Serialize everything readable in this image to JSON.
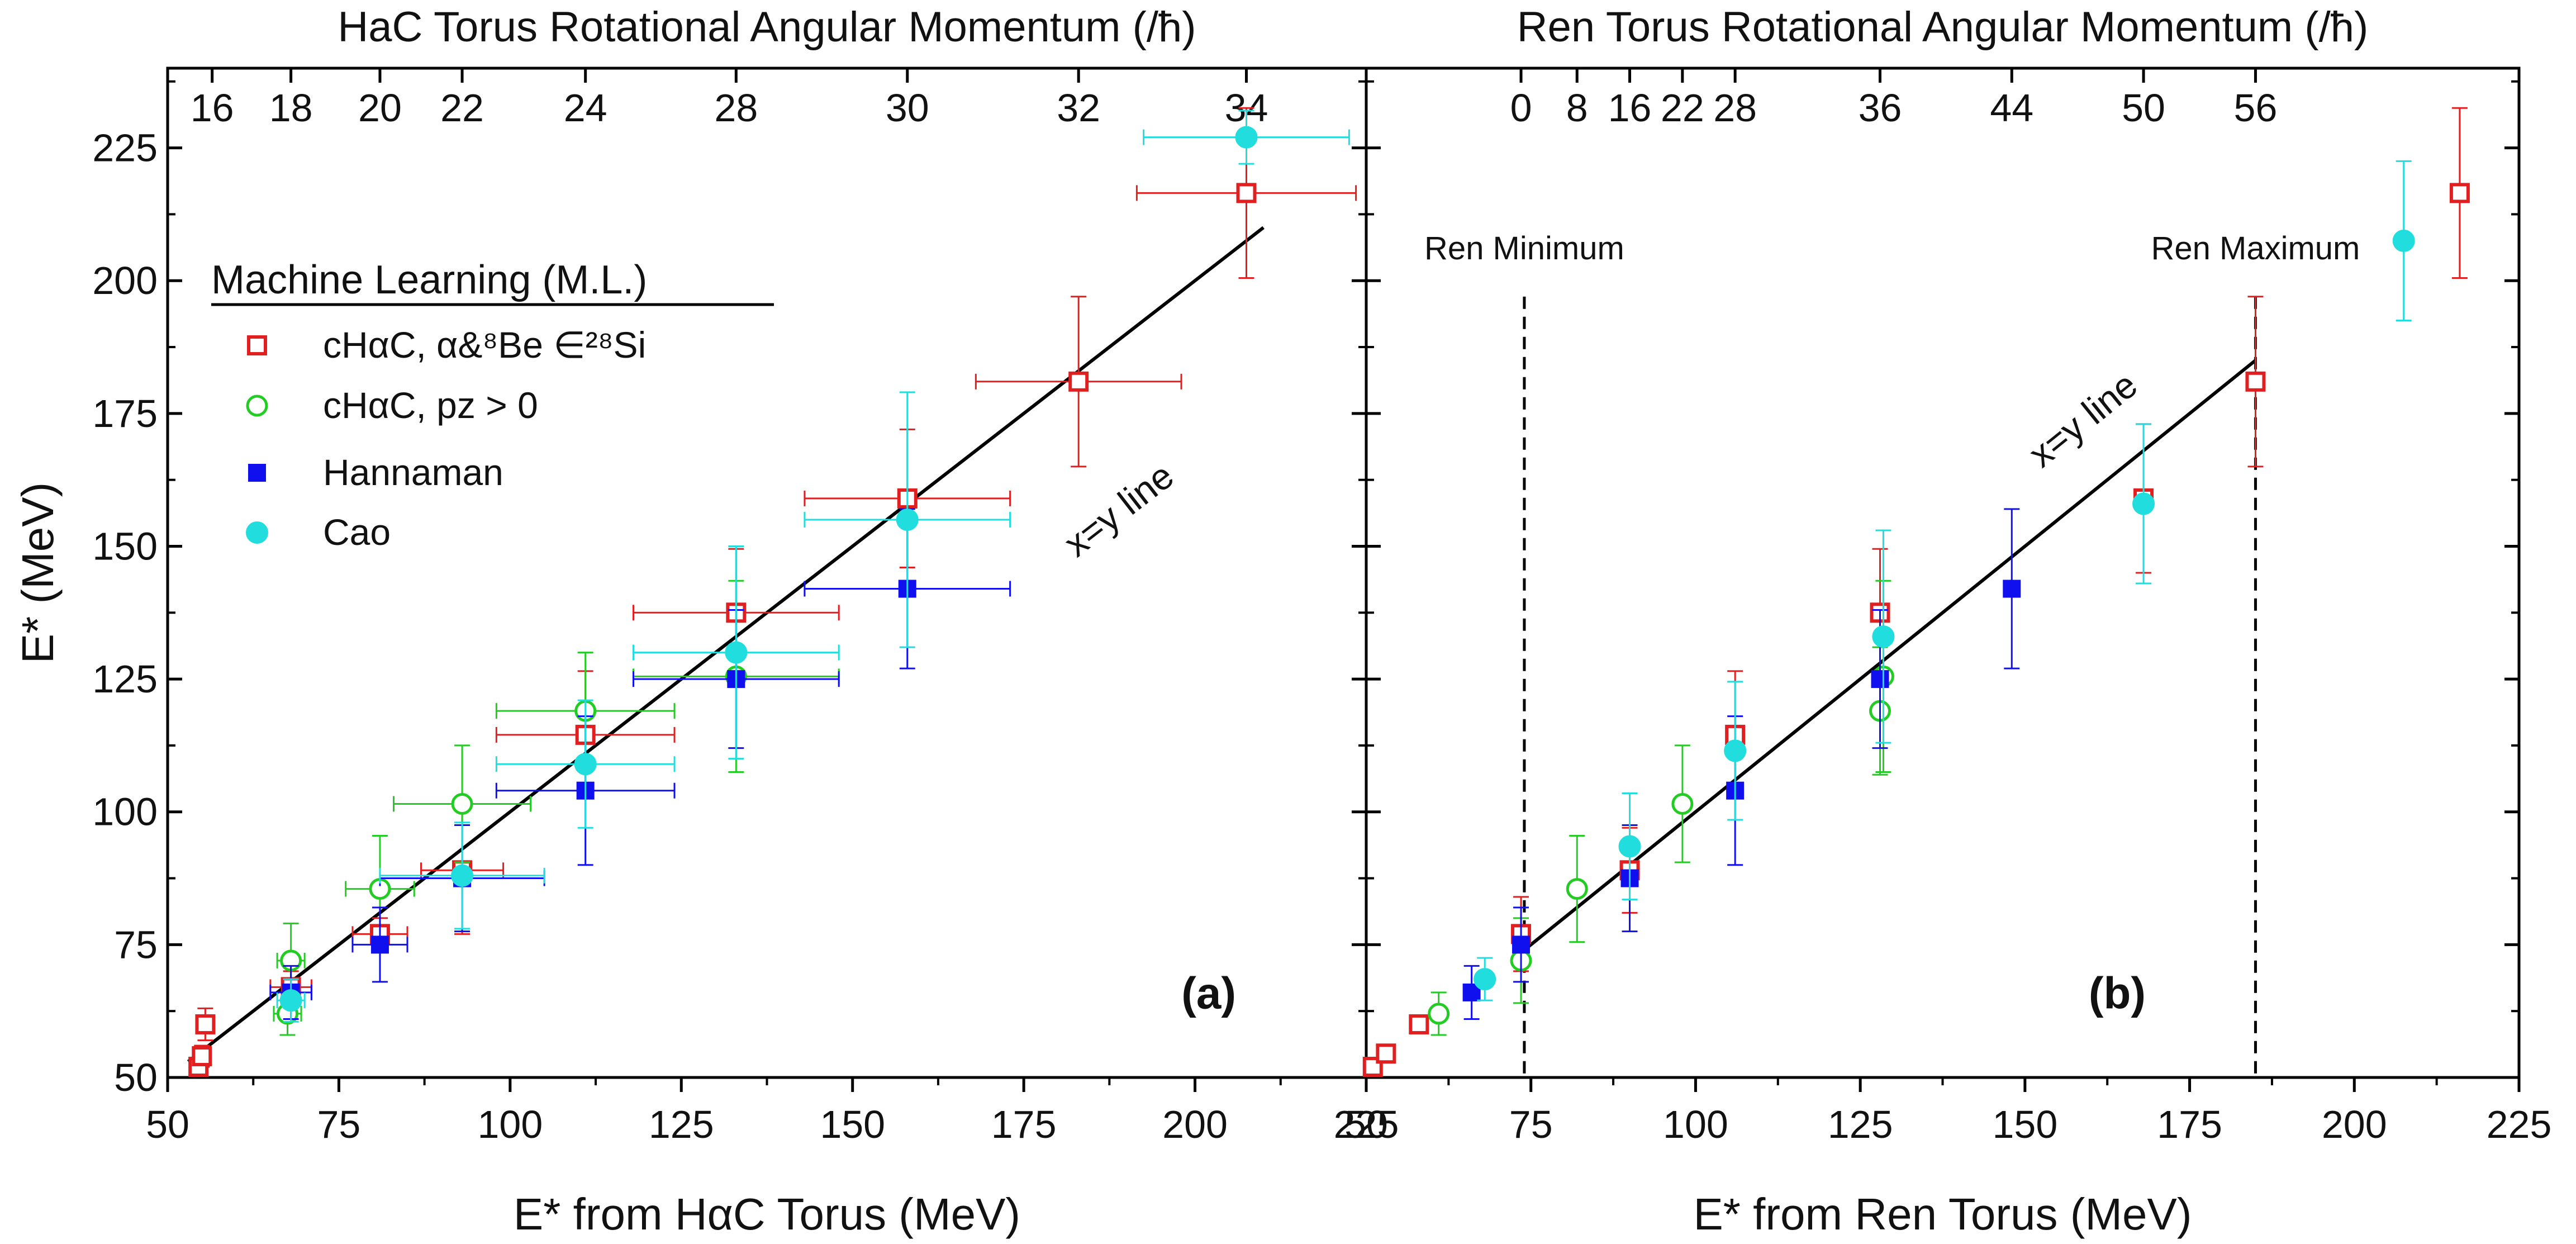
{
  "chart_data": [
    {
      "type": "scatter",
      "panel_label": "(a)",
      "top_axis_title": "HaC Torus Rotational Angular Momentum (/ħ)",
      "top_ticks": [
        {
          "x": 56.5,
          "label": "16"
        },
        {
          "x": 68,
          "label": "18"
        },
        {
          "x": 81,
          "label": "20"
        },
        {
          "x": 93,
          "label": "22"
        },
        {
          "x": 111,
          "label": "24"
        },
        {
          "x": 133,
          "label": "28"
        },
        {
          "x": 158,
          "label": "30"
        },
        {
          "x": 183,
          "label": "32"
        },
        {
          "x": 207.5,
          "label": "34"
        }
      ],
      "xlabel": "E* from HαC Torus (MeV)",
      "ylabel": "E* (MeV)",
      "xlim": [
        50,
        225
      ],
      "ylim": [
        50,
        240
      ],
      "xticks": [
        50,
        75,
        100,
        125,
        150,
        175,
        200,
        225
      ],
      "yticks": [
        50,
        75,
        100,
        125,
        150,
        175,
        200,
        225
      ],
      "line": {
        "x1": 53,
        "x2": 210,
        "label": "x=y line",
        "label_x": 190,
        "label_y": 155
      },
      "legend": {
        "title": "Machine Learning (M.L.)",
        "entries": [
          {
            "label": "cHαC, α&⁸Be ∈²⁸Si",
            "marker": "open-square",
            "color": "#e02020"
          },
          {
            "label": "cHαC, pz > 0",
            "marker": "open-circle",
            "color": "#22cc22"
          },
          {
            "label": "Hannaman",
            "marker": "filled-square",
            "color": "#1010ee"
          },
          {
            "label": "Cao",
            "marker": "filled-circle",
            "color": "#22dddd"
          }
        ]
      },
      "series": [
        {
          "name": "cHαC, α&⁸Be ∈²⁸Si",
          "marker": "open-square",
          "color": "#e02020",
          "points": [
            {
              "x": 54.5,
              "y": 52,
              "xerr": 0,
              "yerr": 0
            },
            {
              "x": 55,
              "y": 54,
              "xerr": 0,
              "yerr": 2
            },
            {
              "x": 55.5,
              "y": 60,
              "xerr": 0,
              "yerr": 3
            },
            {
              "x": 68,
              "y": 67,
              "xerr": 3,
              "yerr": 3
            },
            {
              "x": 81,
              "y": 77,
              "xerr": 4,
              "yerr": 3
            },
            {
              "x": 93,
              "y": 89,
              "xerr": 6,
              "yerr": 12
            },
            {
              "x": 111,
              "y": 114.5,
              "xerr": 13,
              "yerr": 12
            },
            {
              "x": 133,
              "y": 137.5,
              "xerr": 15,
              "yerr": 12
            },
            {
              "x": 158,
              "y": 159,
              "xerr": 15,
              "yerr": 13
            },
            {
              "x": 183,
              "y": 181,
              "xerr": 15,
              "yerr": 16
            },
            {
              "x": 207.5,
              "y": 216.5,
              "xerr": 16,
              "yerr": 16
            }
          ]
        },
        {
          "name": "cHαC, pz > 0",
          "marker": "open-circle",
          "color": "#22cc22",
          "points": [
            {
              "x": 67.5,
              "y": 62,
              "xerr": 2,
              "yerr": 4
            },
            {
              "x": 68,
              "y": 72,
              "xerr": 2,
              "yerr": 7
            },
            {
              "x": 81,
              "y": 85.5,
              "xerr": 5,
              "yerr": 10
            },
            {
              "x": 93,
              "y": 101.5,
              "xerr": 10,
              "yerr": 11
            },
            {
              "x": 111,
              "y": 119,
              "xerr": 13,
              "yerr": 11
            },
            {
              "x": 133,
              "y": 125.5,
              "xerr": 15,
              "yerr": 18
            }
          ]
        },
        {
          "name": "Hannaman",
          "marker": "filled-square",
          "color": "#1010ee",
          "points": [
            {
              "x": 68,
              "y": 66,
              "xerr": 3,
              "yerr": 5
            },
            {
              "x": 81,
              "y": 75,
              "xerr": 4,
              "yerr": 7
            },
            {
              "x": 93,
              "y": 87.5,
              "xerr": 12,
              "yerr": 10
            },
            {
              "x": 111,
              "y": 104,
              "xerr": 13,
              "yerr": 14
            },
            {
              "x": 133,
              "y": 125,
              "xerr": 15,
              "yerr": 13
            },
            {
              "x": 158,
              "y": 142,
              "xerr": 15,
              "yerr": 15
            }
          ]
        },
        {
          "name": "Cao",
          "marker": "filled-circle",
          "color": "#22dddd",
          "points": [
            {
              "x": 68,
              "y": 64.5,
              "xerr": 2,
              "yerr": 4
            },
            {
              "x": 93,
              "y": 88,
              "xerr": 12,
              "yerr": 10
            },
            {
              "x": 111,
              "y": 109,
              "xerr": 13,
              "yerr": 12
            },
            {
              "x": 133,
              "y": 130,
              "xerr": 15,
              "yerr": 20
            },
            {
              "x": 158,
              "y": 155,
              "xerr": 15,
              "yerr": 24
            },
            {
              "x": 207.5,
              "y": 227,
              "xerr": 15,
              "yerr": 5
            }
          ]
        }
      ]
    },
    {
      "type": "scatter",
      "panel_label": "(b)",
      "top_axis_title": "Ren Torus Rotational Angular Momentum (/ħ)",
      "top_ticks": [
        {
          "x": 73.5,
          "label": "0"
        },
        {
          "x": 82,
          "label": "8"
        },
        {
          "x": 90,
          "label": "16"
        },
        {
          "x": 98,
          "label": "22"
        },
        {
          "x": 106,
          "label": "28"
        },
        {
          "x": 128,
          "label": "36"
        },
        {
          "x": 148,
          "label": "44"
        },
        {
          "x": 168,
          "label": "50"
        },
        {
          "x": 185,
          "label": "56"
        }
      ],
      "xlabel": "E* from Ren Torus (MeV)",
      "ylabel": "",
      "xlim": [
        50,
        225
      ],
      "ylim": [
        50,
        240
      ],
      "xticks": [
        50,
        75,
        100,
        125,
        150,
        175,
        200,
        225
      ],
      "yticks": [
        50,
        75,
        100,
        125,
        150,
        175,
        200,
        225
      ],
      "line": {
        "x1": 74,
        "x2": 185,
        "label": "x=y line",
        "label_x": 160,
        "label_y": 172
      },
      "vlines": [
        {
          "x": 74,
          "label": "Ren Minimum"
        },
        {
          "x": 185,
          "label": "Ren Maximum"
        }
      ],
      "series": [
        {
          "name": "cHαC, α&⁸Be ∈²⁸Si",
          "marker": "open-square",
          "color": "#e02020",
          "points": [
            {
              "x": 51,
              "y": 52,
              "yerr": 0
            },
            {
              "x": 53,
              "y": 54.5,
              "yerr": 0
            },
            {
              "x": 58,
              "y": 60,
              "yerr": 0
            },
            {
              "x": 73.5,
              "y": 77,
              "yerr": 7
            },
            {
              "x": 90,
              "y": 89,
              "yerr": 8
            },
            {
              "x": 106,
              "y": 114.5,
              "yerr": 12
            },
            {
              "x": 128,
              "y": 137.5,
              "yerr": 12
            },
            {
              "x": 168,
              "y": 159,
              "yerr": 14
            },
            {
              "x": 185,
              "y": 181,
              "yerr": 16
            },
            {
              "x": 216,
              "y": 216.5,
              "yerr": 16
            }
          ]
        },
        {
          "name": "cHαC, pz > 0",
          "marker": "open-circle",
          "color": "#22cc22",
          "points": [
            {
              "x": 61,
              "y": 62,
              "yerr": 4
            },
            {
              "x": 73.5,
              "y": 72,
              "yerr": 8
            },
            {
              "x": 82,
              "y": 85.5,
              "yerr": 10
            },
            {
              "x": 98,
              "y": 101.5,
              "yerr": 11
            },
            {
              "x": 128,
              "y": 119,
              "yerr": 12
            },
            {
              "x": 128.5,
              "y": 125.5,
              "yerr": 18
            }
          ]
        },
        {
          "name": "Hannaman",
          "marker": "filled-square",
          "color": "#1010ee",
          "points": [
            {
              "x": 66,
              "y": 66,
              "yerr": 5
            },
            {
              "x": 73.5,
              "y": 75,
              "yerr": 7
            },
            {
              "x": 90,
              "y": 87.5,
              "yerr": 10
            },
            {
              "x": 106,
              "y": 104,
              "yerr": 14
            },
            {
              "x": 128,
              "y": 125,
              "yerr": 13
            },
            {
              "x": 148,
              "y": 142,
              "yerr": 15
            }
          ]
        },
        {
          "name": "Cao",
          "marker": "filled-circle",
          "color": "#22dddd",
          "points": [
            {
              "x": 68,
              "y": 68.5,
              "yerr": 4
            },
            {
              "x": 90,
              "y": 93.5,
              "yerr": 10
            },
            {
              "x": 106,
              "y": 111.5,
              "yerr": 13
            },
            {
              "x": 128.5,
              "y": 133,
              "yerr": 20
            },
            {
              "x": 168,
              "y": 158,
              "yerr": 15
            },
            {
              "x": 207.5,
              "y": 207.5,
              "yerr": 15
            }
          ]
        }
      ]
    }
  ]
}
